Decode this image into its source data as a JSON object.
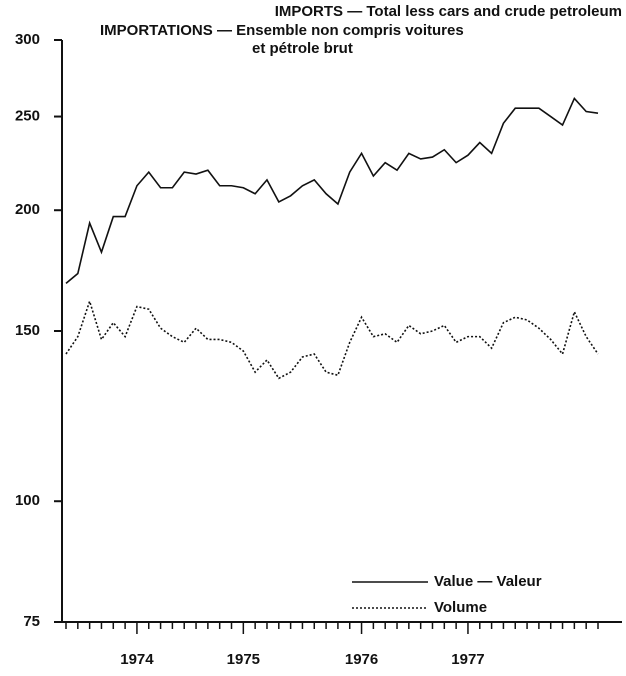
{
  "chart_data": {
    "type": "line",
    "title": [
      "IMPORTS — Total less cars and crude petroleum",
      "IMPORTATIONS — Ensemble non compris voitures",
      "et pétrole brut"
    ],
    "categories": [
      null,
      null,
      null,
      null,
      null,
      null,
      "1974",
      null,
      null,
      null,
      null,
      null,
      null,
      null,
      null,
      "1975",
      null,
      null,
      null,
      null,
      null,
      null,
      null,
      null,
      null,
      "1976",
      null,
      null,
      null,
      null,
      null,
      null,
      null,
      null,
      "1977",
      null,
      null,
      null,
      null,
      null,
      null,
      null,
      null,
      null,
      null,
      null
    ],
    "series": [
      {
        "name": "Value — Valeur",
        "color": "#111111",
        "style": "solid",
        "values": [
          168,
          172,
          194,
          181,
          197,
          197,
          212,
          219,
          211,
          211,
          219,
          218,
          220,
          212,
          212,
          211,
          208,
          215,
          204,
          207,
          212,
          215,
          208,
          203,
          219,
          229,
          217,
          224,
          220,
          229,
          226,
          227,
          231,
          224,
          228,
          235,
          229,
          246,
          255,
          255,
          255,
          250,
          245,
          261,
          253,
          252
        ]
      },
      {
        "name": "Volume",
        "color": "#111111",
        "style": "dotted",
        "values": [
          142,
          148,
          161,
          147,
          153,
          148,
          159,
          158,
          151,
          148,
          146,
          151,
          147,
          147,
          146,
          143,
          136,
          140,
          134,
          136,
          141,
          142,
          136,
          135,
          146,
          155,
          148,
          149,
          146,
          152,
          149,
          150,
          152,
          146,
          148,
          148,
          144,
          153,
          155,
          154,
          151,
          147,
          142,
          157,
          148,
          142
        ]
      }
    ],
    "log_scale": true,
    "ylim": [
      75,
      300
    ],
    "yticks": [
      75,
      100,
      150,
      200,
      250,
      300
    ],
    "legend": "lower right"
  }
}
